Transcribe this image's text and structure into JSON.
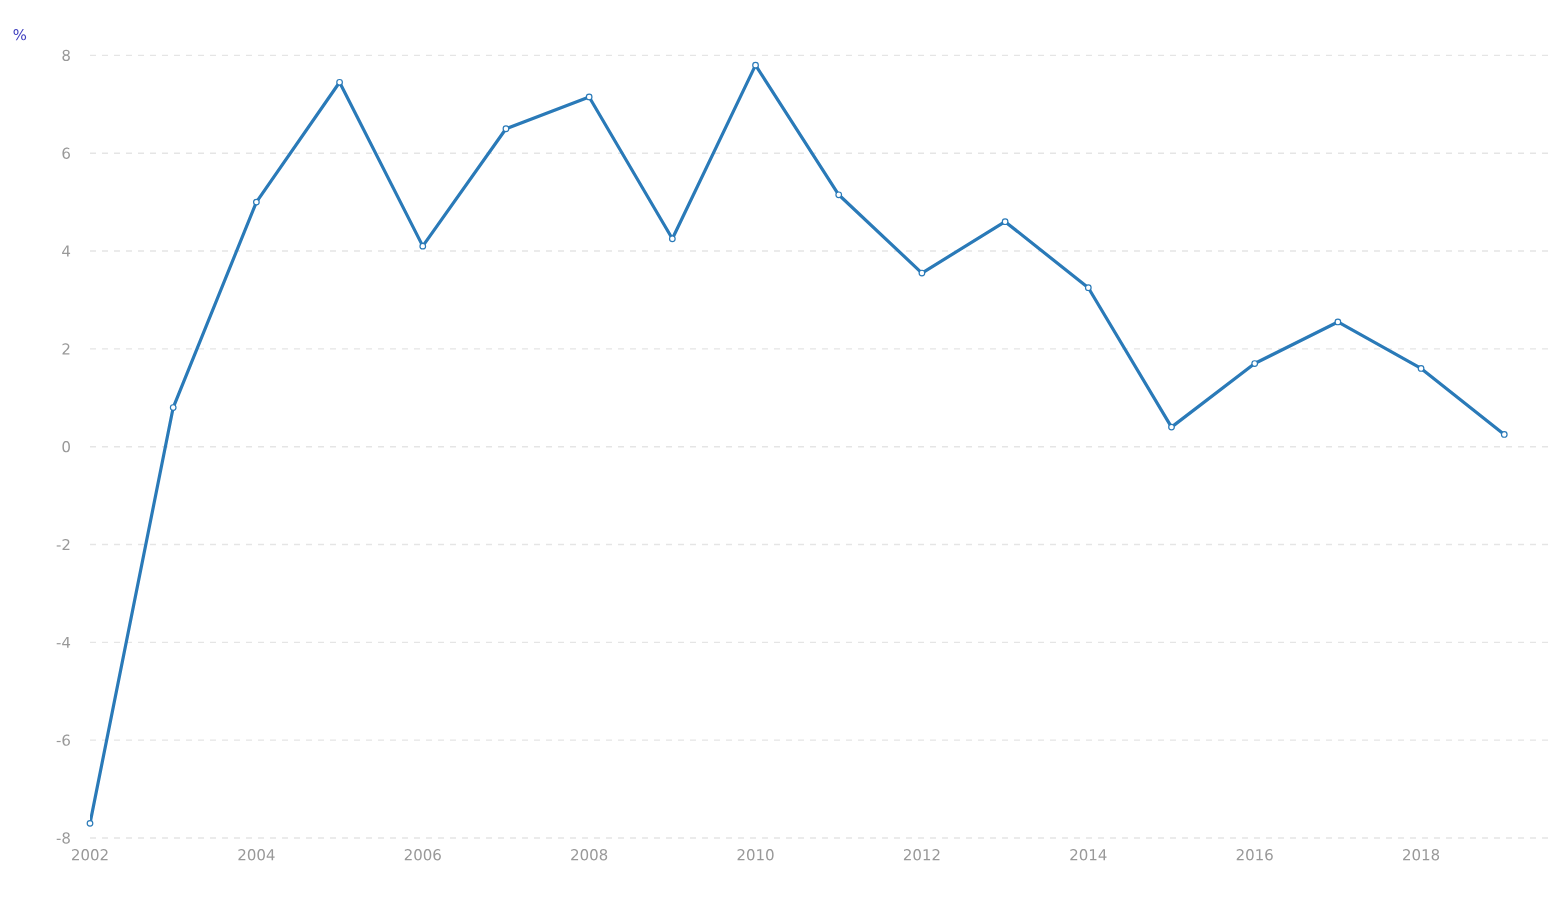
{
  "chart_data": {
    "type": "line",
    "ylabel": "%",
    "x": [
      2002,
      2003,
      2004,
      2005,
      2006,
      2007,
      2008,
      2009,
      2010,
      2011,
      2012,
      2013,
      2014,
      2015,
      2016,
      2017,
      2018,
      2019
    ],
    "series": [
      {
        "color": "#2a7ab8",
        "values": [
          -7.7,
          0.8,
          5.0,
          7.45,
          4.1,
          6.5,
          7.15,
          4.25,
          7.8,
          5.15,
          3.55,
          4.6,
          3.25,
          0.4,
          1.7,
          2.55,
          1.6,
          0.25
        ]
      }
    ],
    "xlim": [
      2002,
      2019.55
    ],
    "xticks": [
      2002,
      2004,
      2006,
      2008,
      2010,
      2012,
      2014,
      2016,
      2018
    ],
    "ylim": [
      -8,
      8
    ],
    "yticks": [
      -8,
      -6,
      -4,
      -2,
      0,
      2,
      4,
      6,
      8
    ],
    "grid": "y",
    "marker": "circle",
    "line_style": "solid"
  }
}
